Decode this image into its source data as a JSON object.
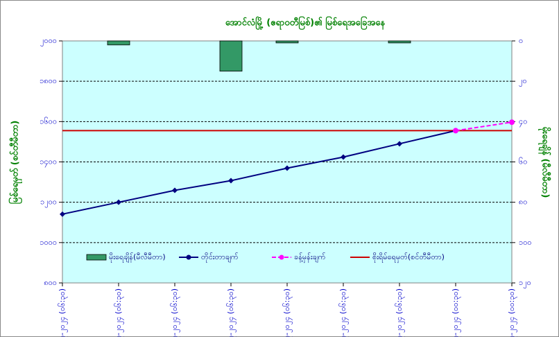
{
  "chart_data": {
    "type": "combo",
    "title": "အောင်လံမြို့ (ဧရာဝတီမြစ်)၏ မြစ်ရေအခြေအနေ",
    "y_label": "မြစ်ရေမှတ် (စင်တီမီတာ)",
    "y2_label": "မိုးရေချိန် (မီလီမီတာ)",
    "categories": [
      "၇-၇-၂၀၂၄ (၀၆:၃၀)",
      "၈-၇-၂၀၂၄ (၀၆:၃၀)",
      "၉-၇-၂၀၂၄ (၀၆:၃၀)",
      "၁၀-၇-၂၀၂၄ (၀၆:၃၀)",
      "၁၁-၇-၂၀၂၄ (၀၆:၃၀)",
      "၁၂-၇-၂၀၂၄ (၀၆:၃၀)",
      "၁၃-၇-၂၀၂၄ (၀၆:၃၀)",
      "၁၄-၇-၂၀၂၄ (၀၀:၃၀)",
      "၁၅-၇-၂၀၂၄ (၀၀:၃၀)"
    ],
    "series": [
      {
        "name": "မိုးရေချိန်(မီလီမီတာ)",
        "kind": "bar",
        "axis": "y2",
        "color": "#339966",
        "values": [
          0,
          2,
          0,
          15,
          1,
          0,
          1,
          0,
          0
        ]
      },
      {
        "name": "တိုင်းတာချက်",
        "kind": "line",
        "color": "#000080",
        "values": [
          1141,
          1200,
          1259,
          1307,
          1369,
          1424,
          1490,
          1555,
          null
        ]
      },
      {
        "name": "ခန့်မှန်းချက်",
        "kind": "dashed",
        "color": "#ff00ff",
        "values": [
          null,
          null,
          null,
          null,
          null,
          null,
          null,
          1555,
          1597
        ]
      }
    ],
    "warning": {
      "name": "စိုးရိမ်ရေမှတ်(စင်တီမီတာ)",
      "color": "#cc0000",
      "value": 1555
    },
    "ylim": [
      800,
      2000
    ],
    "yticks": [
      {
        "value": 800,
        "label": "၈၀၀"
      },
      {
        "value": 1000,
        "label": "၁၀၀၀"
      },
      {
        "value": 1200,
        "label": "၁၂၀၀"
      },
      {
        "value": 1400,
        "label": "၁၄၀၀"
      },
      {
        "value": 1600,
        "label": "၁၆၀၀"
      },
      {
        "value": 1800,
        "label": "၁၈၀၀"
      },
      {
        "value": 2000,
        "label": "၂၀၀၀"
      }
    ],
    "y2lim": [
      120,
      0
    ],
    "y2ticks": [
      {
        "value": 0,
        "label": "၀"
      },
      {
        "value": 20,
        "label": "၂၀"
      },
      {
        "value": 40,
        "label": "၄၀"
      },
      {
        "value": 60,
        "label": "၆၀"
      },
      {
        "value": 80,
        "label": "၈၀"
      },
      {
        "value": 100,
        "label": "၁၀၀"
      },
      {
        "value": 120,
        "label": "၁၂၀"
      }
    ],
    "grid": true
  }
}
